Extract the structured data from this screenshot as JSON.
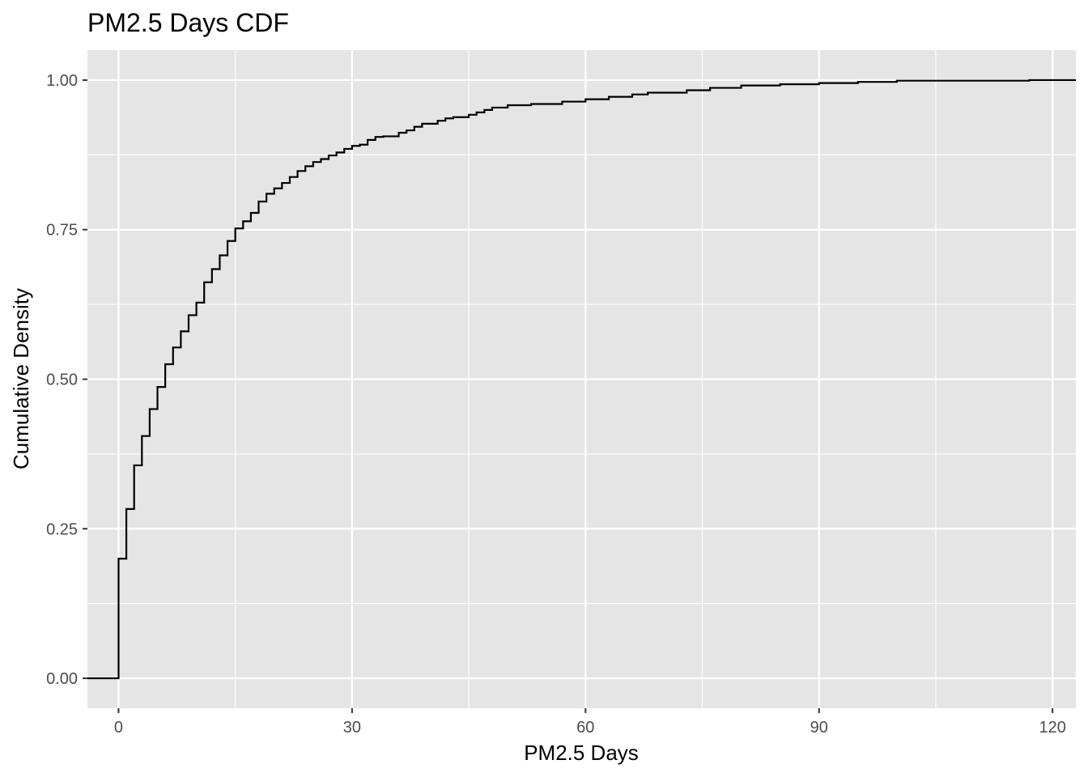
{
  "chart_data": {
    "type": "line",
    "subtype": "ecdf-step",
    "title": "PM2.5 Days CDF",
    "xlabel": "PM2.5 Days",
    "ylabel": "Cumulative Density",
    "xlim": [
      -4,
      123
    ],
    "ylim": [
      -0.05,
      1.05
    ],
    "x_ticks": [
      0,
      30,
      60,
      90,
      120
    ],
    "x_tick_labels": [
      "0",
      "30",
      "60",
      "90",
      "120"
    ],
    "x_minor": [
      15,
      45,
      75,
      105
    ],
    "y_ticks": [
      0,
      0.25,
      0.5,
      0.75,
      1.0
    ],
    "y_tick_labels": [
      "0.00",
      "0.25",
      "0.50",
      "0.75",
      "1.00"
    ],
    "y_minor": [
      0.125,
      0.375,
      0.625,
      0.875
    ],
    "grid": true,
    "background": "#e5e5e5",
    "grid_color": "#ffffff",
    "line_color": "#000000",
    "series": [
      {
        "name": "PM2.5 Days",
        "x": [
          0,
          1,
          2,
          3,
          4,
          5,
          6,
          7,
          8,
          9,
          10,
          11,
          12,
          13,
          14,
          15,
          16,
          17,
          18,
          19,
          20,
          21,
          22,
          23,
          24,
          25,
          26,
          27,
          28,
          29,
          30,
          31,
          32,
          33,
          34,
          36,
          37,
          38,
          39,
          41,
          42,
          43,
          45,
          46,
          47,
          48,
          50,
          53,
          57,
          60,
          63,
          66,
          68,
          73,
          76,
          80,
          85,
          90,
          95,
          100,
          117
        ],
        "y": [
          0.2,
          0.283,
          0.356,
          0.405,
          0.45,
          0.487,
          0.525,
          0.553,
          0.58,
          0.607,
          0.628,
          0.662,
          0.684,
          0.707,
          0.731,
          0.752,
          0.764,
          0.778,
          0.797,
          0.81,
          0.819,
          0.828,
          0.838,
          0.848,
          0.856,
          0.863,
          0.868,
          0.874,
          0.879,
          0.885,
          0.89,
          0.892,
          0.9,
          0.905,
          0.906,
          0.912,
          0.916,
          0.922,
          0.927,
          0.932,
          0.936,
          0.938,
          0.942,
          0.946,
          0.95,
          0.954,
          0.958,
          0.96,
          0.964,
          0.968,
          0.972,
          0.976,
          0.979,
          0.983,
          0.987,
          0.991,
          0.993,
          0.995,
          0.997,
          0.999,
          1.0
        ]
      }
    ]
  }
}
